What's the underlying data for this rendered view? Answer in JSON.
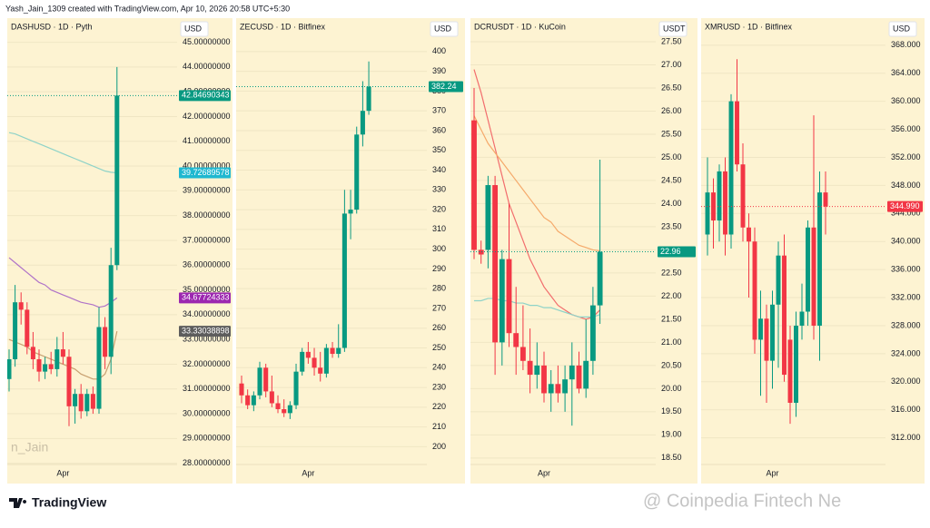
{
  "header": "Yash_Jain_1309 created with TradingView.com, Apr 10, 2026 20:58 UTC+5:30",
  "footer": {
    "brand": "TradingView",
    "watermark": "@ Coinpedia Fintech Ne"
  },
  "chart_data": [
    {
      "type": "candlestick",
      "title": "DASHUSD · 1D · Pyth",
      "currency": "USD",
      "watermark": "n_Jain",
      "up_color": "#089981",
      "down_color": "#f23645",
      "categories": [
        null,
        null,
        null,
        null,
        null,
        null,
        null,
        null,
        null,
        "Apr",
        null,
        null,
        null,
        null,
        null,
        null,
        null,
        null,
        null
      ],
      "open": [
        31.4,
        32.2,
        34.5,
        34.2,
        32.7,
        32.2,
        31.7,
        32.0,
        31.8,
        32.6,
        32.3,
        30.3,
        30.8,
        30.1,
        30.8,
        30.2,
        33.5,
        32.3,
        36.0
      ],
      "high": [
        32.6,
        35.2,
        34.9,
        34.5,
        33.3,
        32.6,
        32.3,
        32.5,
        33.1,
        33.3,
        32.6,
        31.0,
        31.2,
        31.0,
        31.1,
        34.3,
        33.9,
        36.7,
        44.0
      ],
      "low": [
        30.9,
        31.9,
        33.6,
        32.4,
        31.8,
        31.3,
        31.4,
        31.6,
        31.5,
        32.0,
        29.5,
        29.6,
        29.8,
        29.9,
        30.0,
        30.0,
        31.8,
        31.6,
        35.8
      ],
      "close": [
        32.2,
        34.5,
        34.2,
        32.7,
        32.2,
        31.7,
        32.0,
        31.8,
        32.6,
        32.3,
        30.3,
        30.8,
        30.1,
        30.8,
        30.2,
        33.5,
        32.3,
        36.0,
        42.84690343
      ],
      "lines": [
        {
          "color": "#8fd3c8",
          "label_color": "#1fb8d0",
          "values": [
            41.35,
            41.3,
            41.2,
            41.1,
            41.0,
            40.9,
            40.8,
            40.7,
            40.6,
            40.5,
            40.4,
            40.3,
            40.2,
            40.1,
            40.0,
            39.9,
            39.8,
            39.75,
            39.72689578
          ]
        },
        {
          "color": "#b073c8",
          "label_color": "#9c27b0",
          "values": [
            36.3,
            36.1,
            35.9,
            35.7,
            35.5,
            35.3,
            35.2,
            35.0,
            34.9,
            34.8,
            34.7,
            34.6,
            34.5,
            34.45,
            34.4,
            34.3,
            34.35,
            34.5,
            34.67724333
          ]
        },
        {
          "color": "#c8a070",
          "label_color": "#5d5d5d",
          "values": [
            33.0,
            32.9,
            32.8,
            32.7,
            32.5,
            32.4,
            32.3,
            32.2,
            32.1,
            32.0,
            31.9,
            31.8,
            31.6,
            31.5,
            31.4,
            31.4,
            31.6,
            32.2,
            33.33038898
          ]
        }
      ],
      "ylim": [
        27.95,
        45.9
      ],
      "yticks": [
        {
          "value": 28,
          "label": "28.00000000"
        },
        {
          "value": 29,
          "label": "29.00000000"
        },
        {
          "value": 30,
          "label": "30.00000000"
        },
        {
          "value": 31,
          "label": "31.00000000"
        },
        {
          "value": 32,
          "label": "32.00000000"
        },
        {
          "value": 33,
          "label": "33.00000000"
        },
        {
          "value": 34,
          "label": "34.00000000"
        },
        {
          "value": 35,
          "label": "35.00000000"
        },
        {
          "value": 36,
          "label": "36.00000000"
        },
        {
          "value": 37,
          "label": "37.00000000"
        },
        {
          "value": 38,
          "label": "38.00000000"
        },
        {
          "value": 39,
          "label": "39.00000000"
        },
        {
          "value": 40,
          "label": "40.00000000"
        },
        {
          "value": 41,
          "label": "41.00000000"
        },
        {
          "value": 42,
          "label": "42.00000000"
        },
        {
          "value": 43,
          "label": "43.00000000"
        },
        {
          "value": 44,
          "label": "44.00000000"
        },
        {
          "value": 45,
          "label": "45.00000000"
        }
      ]
    },
    {
      "type": "candlestick",
      "title": "ZECUSD · 1D · Bitfinex",
      "currency": "USD",
      "up_color": "#089981",
      "down_color": "#f23645",
      "categories": [
        null,
        null,
        null,
        null,
        null,
        null,
        null,
        null,
        null,
        null,
        null,
        "Apr",
        null,
        null,
        null,
        null,
        null,
        null,
        null,
        null,
        null,
        null
      ],
      "open": [
        232,
        226,
        221,
        226,
        240,
        228,
        222,
        219,
        217,
        221,
        238,
        248,
        245,
        240,
        237,
        250,
        247,
        250,
        318,
        320,
        358,
        370
      ],
      "high": [
        236,
        229,
        228,
        243,
        242,
        236,
        226,
        224,
        223,
        242,
        250,
        253,
        250,
        248,
        252,
        253,
        262,
        330,
        330,
        362,
        385,
        395
      ],
      "low": [
        222,
        219,
        218,
        224,
        225,
        220,
        217,
        215,
        214,
        219,
        236,
        242,
        236,
        233,
        235,
        245,
        245,
        248,
        305,
        318,
        352,
        368
      ],
      "close": [
        226,
        221,
        226,
        240,
        228,
        222,
        219,
        217,
        221,
        238,
        248,
        245,
        240,
        237,
        250,
        247,
        250,
        318,
        320,
        358,
        370,
        382.24
      ],
      "lines": [],
      "ylim": [
        191,
        416
      ],
      "yticks": [
        200,
        210,
        220,
        230,
        240,
        250,
        260,
        270,
        280,
        290,
        300,
        310,
        320,
        330,
        340,
        350,
        360,
        370,
        380,
        390,
        400
      ]
    },
    {
      "type": "candlestick",
      "title": "DCRUSDT · 1D · KuCoin",
      "currency": "USDT",
      "up_color": "#089981",
      "down_color": "#f23645",
      "categories": [
        null,
        null,
        null,
        null,
        null,
        null,
        null,
        null,
        null,
        null,
        "Apr",
        null,
        null,
        null,
        null,
        null,
        null,
        null,
        null
      ],
      "open": [
        25.8,
        23.0,
        23.0,
        24.4,
        21.0,
        22.8,
        21.2,
        20.9,
        20.6,
        20.3,
        20.5,
        19.9,
        20.1,
        19.9,
        20.2,
        20.5,
        20.0,
        20.6,
        21.8
      ],
      "high": [
        26.5,
        23.2,
        24.6,
        24.6,
        23.0,
        24.0,
        22.2,
        21.8,
        21.3,
        21.0,
        20.8,
        20.4,
        20.5,
        20.5,
        21.0,
        20.8,
        21.5,
        22.2,
        24.95
      ],
      "low": [
        22.8,
        22.7,
        22.6,
        20.3,
        20.5,
        20.9,
        20.3,
        20.4,
        19.9,
        20.0,
        19.7,
        19.5,
        19.7,
        19.5,
        19.2,
        19.9,
        19.8,
        20.3,
        21.4
      ],
      "close": [
        23.0,
        22.9,
        24.4,
        21.0,
        22.8,
        21.2,
        20.9,
        20.6,
        20.3,
        20.5,
        19.9,
        20.1,
        19.9,
        20.2,
        20.5,
        20.0,
        20.6,
        21.8,
        22.96
      ],
      "lines": [
        {
          "color": "#f26d6d",
          "values": [
            26.9,
            26.4,
            25.8,
            25.2,
            24.6,
            24.0,
            23.6,
            23.2,
            22.8,
            22.5,
            22.2,
            22.0,
            21.8,
            21.7,
            21.6,
            21.55,
            21.5,
            21.55,
            21.7
          ]
        },
        {
          "color": "#f5a96a",
          "values": [
            25.9,
            25.6,
            25.3,
            25.1,
            24.9,
            24.7,
            24.5,
            24.3,
            24.1,
            23.9,
            23.7,
            23.6,
            23.4,
            23.3,
            23.2,
            23.1,
            23.05,
            23.0,
            22.98
          ]
        },
        {
          "color": "#8fd3c8",
          "values": [
            21.9,
            21.9,
            21.95,
            21.95,
            21.9,
            21.9,
            21.85,
            21.85,
            21.8,
            21.8,
            21.75,
            21.75,
            21.7,
            21.65,
            21.6,
            21.55,
            21.55,
            21.55,
            21.6
          ]
        }
      ],
      "ylim": [
        18.36,
        27.97
      ],
      "yticks": [
        {
          "value": 18.5,
          "label": "18.50"
        },
        {
          "value": 19,
          "label": "19.00"
        },
        {
          "value": 19.5,
          "label": "19.50"
        },
        {
          "value": 20,
          "label": "20.00"
        },
        {
          "value": 20.5,
          "label": "20.50"
        },
        {
          "value": 21,
          "label": "21.00"
        },
        {
          "value": 21.5,
          "label": "21.50"
        },
        {
          "value": 22,
          "label": "22.00"
        },
        {
          "value": 22.5,
          "label": "22.50"
        },
        {
          "value": 23,
          "label": "23.00"
        },
        {
          "value": 23.5,
          "label": "23.50"
        },
        {
          "value": 24,
          "label": "24.00"
        },
        {
          "value": 24.5,
          "label": "24.50"
        },
        {
          "value": 25,
          "label": "25.00"
        },
        {
          "value": 25.5,
          "label": "25.50"
        },
        {
          "value": 26,
          "label": "26.00"
        },
        {
          "value": 26.5,
          "label": "26.50"
        },
        {
          "value": 27,
          "label": "27.00"
        },
        {
          "value": 27.5,
          "label": "27.50"
        }
      ]
    },
    {
      "type": "candlestick",
      "title": "XMRUSD · 1D · Bitfinex",
      "currency": "USD",
      "up_color": "#089981",
      "down_color": "#f23645",
      "last_label": "344.990",
      "categories": [
        null,
        null,
        null,
        null,
        null,
        null,
        null,
        null,
        null,
        null,
        null,
        "Apr",
        null,
        null,
        null,
        null,
        null,
        null,
        null,
        null,
        null
      ],
      "open": [
        341,
        347,
        343,
        350,
        341,
        360,
        351,
        342,
        340,
        326,
        329,
        323,
        331,
        338,
        326,
        317,
        328,
        330,
        342,
        328,
        347
      ],
      "high": [
        352,
        349,
        351,
        352,
        361,
        366,
        354,
        344,
        342,
        333,
        331,
        333,
        340,
        341,
        328,
        330,
        334,
        343,
        358,
        350,
        350
      ],
      "low": [
        338,
        339,
        340,
        338,
        339,
        350,
        340,
        332,
        324,
        318,
        317,
        319,
        322,
        320,
        314,
        315,
        326,
        328,
        326,
        323,
        341
      ],
      "close": [
        347,
        343,
        350,
        341,
        360,
        351,
        342,
        340,
        326,
        329,
        323,
        331,
        338,
        321,
        317,
        328,
        330,
        342,
        328,
        347,
        344.99
      ],
      "lines": [],
      "ylim": [
        308.2,
        371.6
      ],
      "yticks": [
        {
          "value": 312,
          "label": "312.000"
        },
        {
          "value": 316,
          "label": "316.000"
        },
        {
          "value": 320,
          "label": "320.000"
        },
        {
          "value": 324,
          "label": "324.000"
        },
        {
          "value": 328,
          "label": "328.000"
        },
        {
          "value": 332,
          "label": "332.000"
        },
        {
          "value": 336,
          "label": "336.000"
        },
        {
          "value": 340,
          "label": "340.000"
        },
        {
          "value": 344,
          "label": "344.000"
        },
        {
          "value": 348,
          "label": "348.000"
        },
        {
          "value": 352,
          "label": "352.000"
        },
        {
          "value": 356,
          "label": "356.000"
        },
        {
          "value": 360,
          "label": "360.000"
        },
        {
          "value": 364,
          "label": "364.000"
        },
        {
          "value": 368,
          "label": "368.000"
        }
      ]
    }
  ]
}
